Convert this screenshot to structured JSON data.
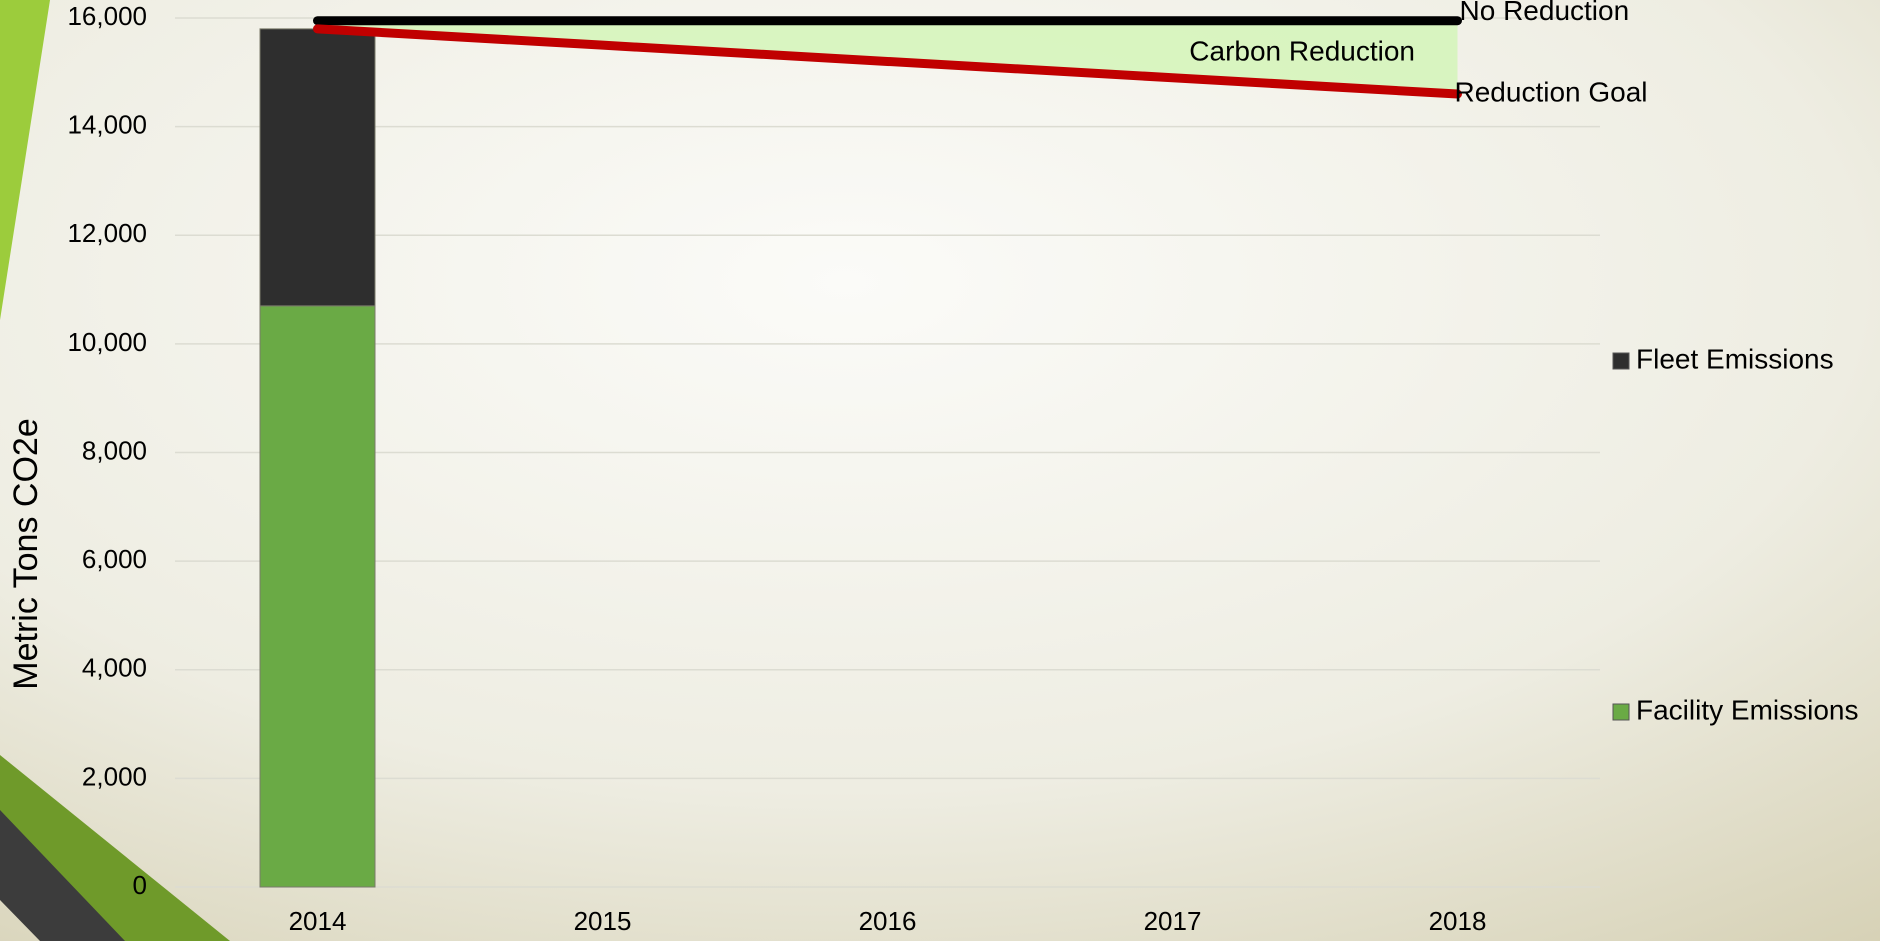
{
  "chart_data": {
    "type": "bar",
    "y_label": "Metric Tons CO2e",
    "categories": [
      "2014",
      "2015",
      "2016",
      "2017",
      "2018"
    ],
    "series": [
      {
        "name": "Facility Emissions",
        "type": "bar",
        "color": "#6aaa45",
        "values": [
          10700,
          null,
          null,
          null,
          null
        ]
      },
      {
        "name": "Fleet Emissions",
        "type": "bar",
        "color": "#2e2e2e",
        "values": [
          5100,
          null,
          null,
          null,
          null
        ]
      },
      {
        "name": "No Reduction",
        "type": "line",
        "color": "#000000",
        "values": [
          15950,
          15950,
          15950,
          15950,
          15950
        ]
      },
      {
        "name": "Reduction Goal",
        "type": "line",
        "color": "#c00000",
        "values": [
          15800,
          15500,
          15200,
          14900,
          14600
        ]
      }
    ],
    "annotation": "Carbon Reduction",
    "area_color": "#d4f5b8",
    "ylim": [
      0,
      16000
    ],
    "yticks": [
      0,
      {
        "value": 2000,
        "label": "2,000"
      },
      {
        "value": 4000,
        "label": "4,000"
      },
      {
        "value": 6000,
        "label": "6,000"
      },
      {
        "value": 8000,
        "label": "8,000"
      },
      {
        "value": 10000,
        "label": "10,000"
      },
      {
        "value": 12000,
        "label": "12,000"
      },
      {
        "value": 14000,
        "label": "14,000"
      },
      {
        "value": 16000,
        "label": "16,000"
      }
    ],
    "grid": true
  }
}
